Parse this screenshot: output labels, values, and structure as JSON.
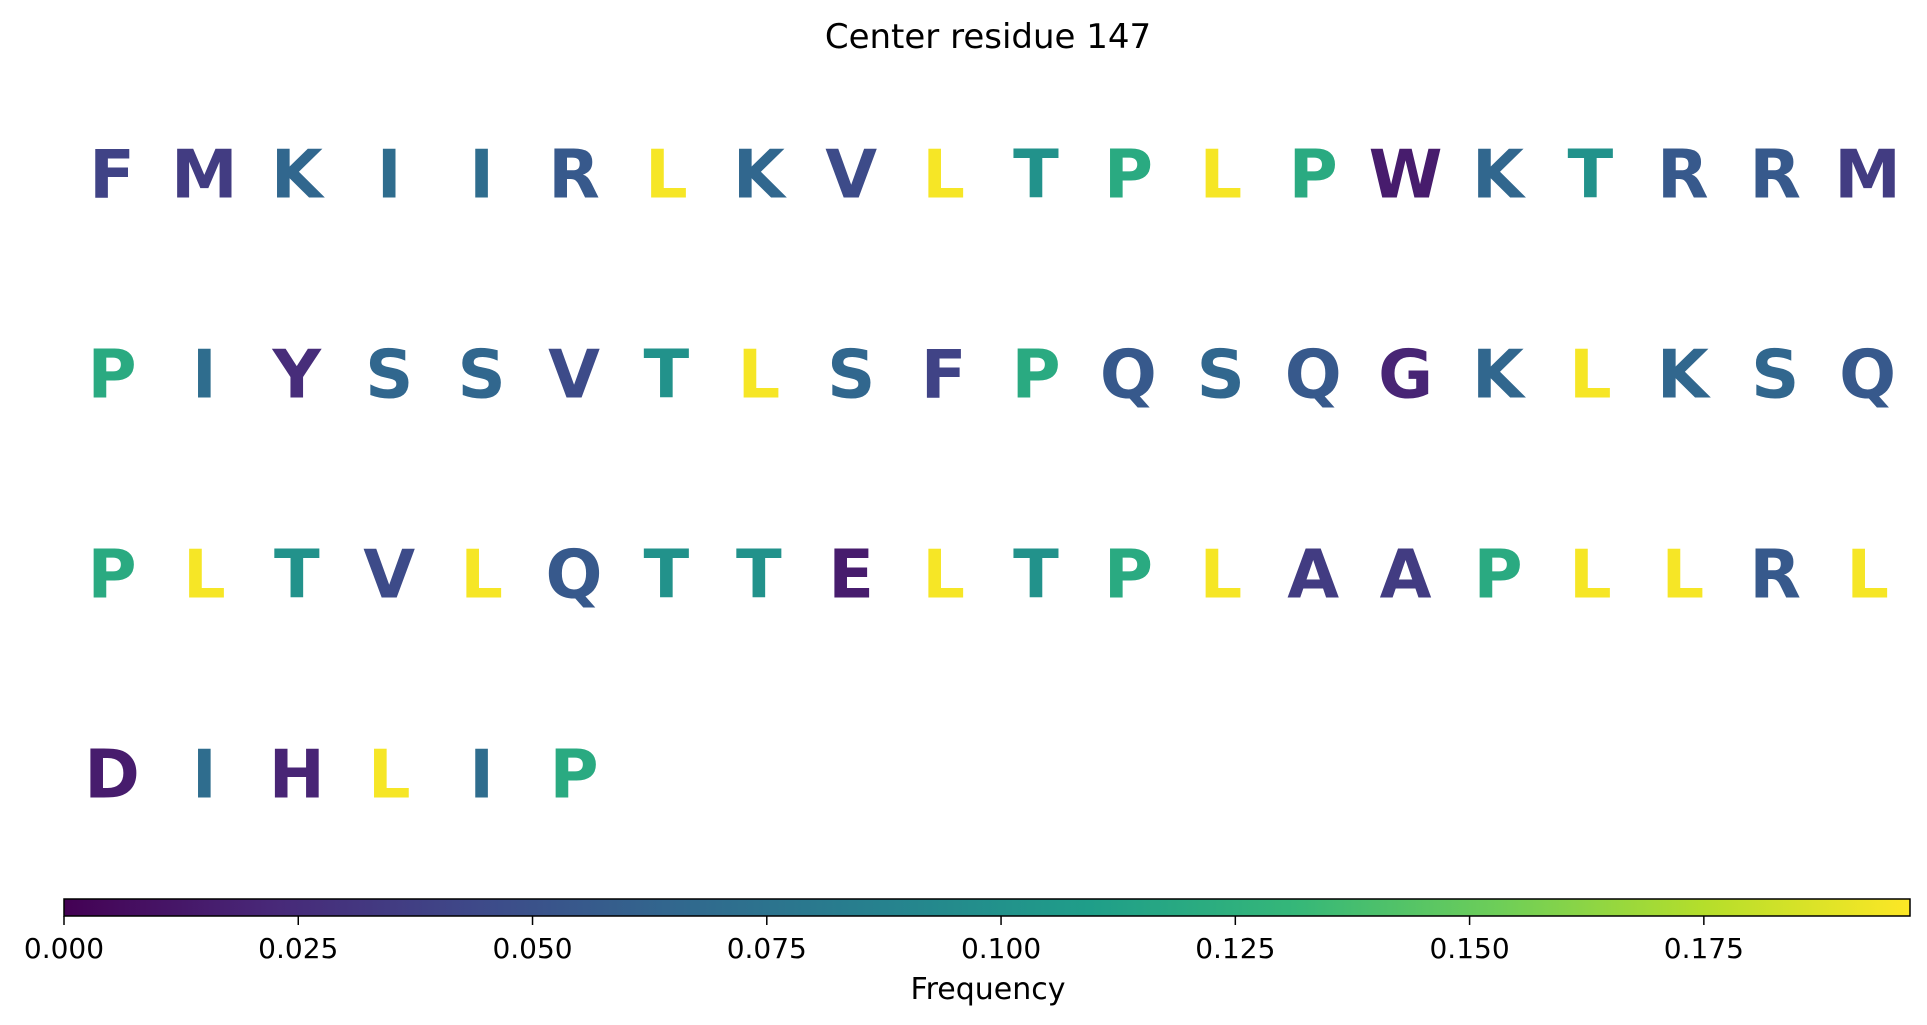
{
  "chart_data": {
    "type": "heatmap",
    "title": "Center residue 147",
    "columns_per_row": 20,
    "residues": [
      {
        "letter": "F",
        "frequency": 0.04
      },
      {
        "letter": "M",
        "frequency": 0.035
      },
      {
        "letter": "K",
        "frequency": 0.065
      },
      {
        "letter": "I",
        "frequency": 0.07
      },
      {
        "letter": "I",
        "frequency": 0.07
      },
      {
        "letter": "R",
        "frequency": 0.055
      },
      {
        "letter": "L",
        "frequency": 0.195
      },
      {
        "letter": "K",
        "frequency": 0.065
      },
      {
        "letter": "V",
        "frequency": 0.045
      },
      {
        "letter": "L",
        "frequency": 0.195
      },
      {
        "letter": "T",
        "frequency": 0.1
      },
      {
        "letter": "P",
        "frequency": 0.12
      },
      {
        "letter": "L",
        "frequency": 0.195
      },
      {
        "letter": "P",
        "frequency": 0.12
      },
      {
        "letter": "W",
        "frequency": 0.015
      },
      {
        "letter": "K",
        "frequency": 0.065
      },
      {
        "letter": "T",
        "frequency": 0.1
      },
      {
        "letter": "R",
        "frequency": 0.055
      },
      {
        "letter": "R",
        "frequency": 0.055
      },
      {
        "letter": "M",
        "frequency": 0.035
      },
      {
        "letter": "P",
        "frequency": 0.12
      },
      {
        "letter": "I",
        "frequency": 0.07
      },
      {
        "letter": "Y",
        "frequency": 0.025
      },
      {
        "letter": "S",
        "frequency": 0.065
      },
      {
        "letter": "S",
        "frequency": 0.065
      },
      {
        "letter": "V",
        "frequency": 0.045
      },
      {
        "letter": "T",
        "frequency": 0.1
      },
      {
        "letter": "L",
        "frequency": 0.195
      },
      {
        "letter": "S",
        "frequency": 0.065
      },
      {
        "letter": "F",
        "frequency": 0.04
      },
      {
        "letter": "P",
        "frequency": 0.12
      },
      {
        "letter": "Q",
        "frequency": 0.055
      },
      {
        "letter": "S",
        "frequency": 0.065
      },
      {
        "letter": "Q",
        "frequency": 0.055
      },
      {
        "letter": "G",
        "frequency": 0.02
      },
      {
        "letter": "K",
        "frequency": 0.065
      },
      {
        "letter": "L",
        "frequency": 0.195
      },
      {
        "letter": "K",
        "frequency": 0.065
      },
      {
        "letter": "S",
        "frequency": 0.065
      },
      {
        "letter": "Q",
        "frequency": 0.055
      },
      {
        "letter": "P",
        "frequency": 0.12
      },
      {
        "letter": "L",
        "frequency": 0.195
      },
      {
        "letter": "T",
        "frequency": 0.1
      },
      {
        "letter": "V",
        "frequency": 0.045
      },
      {
        "letter": "L",
        "frequency": 0.195
      },
      {
        "letter": "Q",
        "frequency": 0.055
      },
      {
        "letter": "T",
        "frequency": 0.1
      },
      {
        "letter": "T",
        "frequency": 0.1
      },
      {
        "letter": "E",
        "frequency": 0.015
      },
      {
        "letter": "L",
        "frequency": 0.195
      },
      {
        "letter": "T",
        "frequency": 0.1
      },
      {
        "letter": "P",
        "frequency": 0.12
      },
      {
        "letter": "L",
        "frequency": 0.195
      },
      {
        "letter": "A",
        "frequency": 0.035
      },
      {
        "letter": "A",
        "frequency": 0.035
      },
      {
        "letter": "P",
        "frequency": 0.12
      },
      {
        "letter": "L",
        "frequency": 0.195
      },
      {
        "letter": "L",
        "frequency": 0.195
      },
      {
        "letter": "R",
        "frequency": 0.055
      },
      {
        "letter": "L",
        "frequency": 0.195
      },
      {
        "letter": "D",
        "frequency": 0.015
      },
      {
        "letter": "I",
        "frequency": 0.07
      },
      {
        "letter": "H",
        "frequency": 0.02
      },
      {
        "letter": "L",
        "frequency": 0.195
      },
      {
        "letter": "I",
        "frequency": 0.07
      },
      {
        "letter": "P",
        "frequency": 0.12
      }
    ],
    "colorbar": {
      "label": "Frequency",
      "colormap": "viridis",
      "range": [
        0.0,
        0.197
      ],
      "ticks": [
        0.0,
        0.025,
        0.05,
        0.075,
        0.1,
        0.125,
        0.15,
        0.175
      ],
      "tick_labels": [
        "0.000",
        "0.025",
        "0.050",
        "0.075",
        "0.100",
        "0.125",
        "0.150",
        "0.175"
      ],
      "stops": [
        "#440154",
        "#482878",
        "#3e4989",
        "#31688e",
        "#26828e",
        "#1f9e89",
        "#35b779",
        "#6ece58",
        "#b5de2b",
        "#fde725"
      ]
    }
  }
}
